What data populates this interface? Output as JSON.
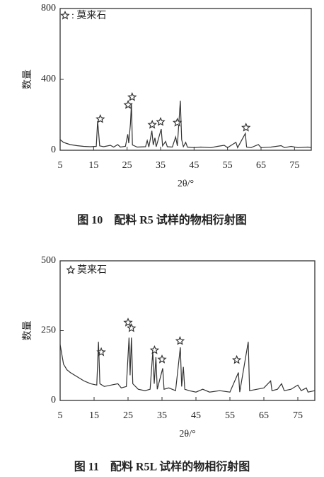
{
  "chart_data": [
    {
      "type": "line",
      "caption": "图 10　配料 R5 试样的物相衍射图",
      "x_label": "2θ/°",
      "y_label": "数量",
      "xlim": [
        5,
        80
      ],
      "xticks": [
        5,
        15,
        25,
        35,
        45,
        55,
        65,
        75
      ],
      "ylim": [
        0,
        800
      ],
      "yticks": [
        0,
        400,
        800
      ],
      "series": [
        {
          "color": "#333333",
          "x": [
            5,
            6,
            7,
            8,
            10,
            12,
            14,
            15.8,
            16.2,
            16.5,
            16.8,
            18,
            20,
            21,
            22.2,
            23,
            24.5,
            25.2,
            25.5,
            26.0,
            26.3,
            26.6,
            28,
            30.5,
            31.0,
            31.5,
            32.4,
            32.8,
            33.3,
            33.7,
            35.2,
            35.6,
            36.5,
            37,
            38.5,
            39.5,
            40.0,
            40.9,
            41.3,
            41.8,
            42.5,
            43,
            45,
            47,
            50,
            52,
            54,
            55,
            57.5,
            58,
            60.3,
            60.7,
            62,
            64.2,
            65,
            68,
            71,
            72,
            74,
            76,
            79,
            80
          ],
          "values": [
            60,
            45,
            38,
            32,
            26,
            22,
            20,
            22,
            165,
            100,
            25,
            20,
            28,
            18,
            32,
            18,
            22,
            90,
            40,
            150,
            265,
            30,
            18,
            20,
            55,
            18,
            110,
            30,
            70,
            20,
            120,
            25,
            50,
            20,
            18,
            75,
            25,
            280,
            60,
            20,
            45,
            18,
            15,
            18,
            15,
            22,
            28,
            15,
            45,
            15,
            95,
            18,
            15,
            32,
            15,
            18,
            26,
            15,
            22,
            15,
            18,
            15
          ]
        },
        {
          "name": ": 莫来石",
          "marker": "star",
          "color": "#333333",
          "x": [
            17,
            25.3,
            26.5,
            32.5,
            35,
            40,
            60.5
          ],
          "values": [
            176,
            256,
            300,
            144,
            160,
            156,
            128
          ]
        }
      ]
    },
    {
      "type": "line",
      "caption": "图 11　配料 R5L 试样的物相衍射图",
      "x_label": "2θ/°",
      "y_label": "数量",
      "xlim": [
        5,
        80
      ],
      "xticks": [
        5,
        15,
        25,
        35,
        45,
        55,
        65,
        75
      ],
      "ylim": [
        0,
        500
      ],
      "yticks": [
        0,
        250,
        500
      ],
      "series": [
        {
          "color": "#333333",
          "x": [
            5,
            6,
            7,
            8,
            10,
            12,
            14,
            15.8,
            16.3,
            16.7,
            18,
            20,
            22,
            23,
            24.5,
            25.3,
            25.6,
            26.0,
            26.4,
            28,
            30,
            31.5,
            32.3,
            32.7,
            33.2,
            33.6,
            35.2,
            35.6,
            37,
            39,
            40.4,
            40.8,
            41.3,
            41.7,
            43,
            45,
            47,
            49,
            52,
            55,
            57.5,
            57.9,
            60.4,
            60.8,
            63,
            65,
            67,
            67.4,
            69,
            70.2,
            71,
            73,
            75,
            76,
            77.5,
            78,
            80
          ],
          "values": [
            200,
            130,
            110,
            100,
            85,
            70,
            60,
            55,
            210,
            60,
            50,
            55,
            60,
            45,
            50,
            225,
            90,
            225,
            60,
            40,
            35,
            40,
            175,
            60,
            155,
            40,
            115,
            40,
            45,
            35,
            190,
            50,
            120,
            40,
            35,
            30,
            40,
            30,
            35,
            30,
            100,
            30,
            210,
            35,
            40,
            45,
            70,
            35,
            40,
            60,
            35,
            40,
            55,
            35,
            45,
            30,
            35
          ]
        },
        {
          "name": "莫来石",
          "marker": "star",
          "color": "#333333",
          "x": [
            17.1,
            25,
            26,
            32.8,
            35,
            40.3,
            57
          ],
          "values": [
            173,
            279,
            259,
            180,
            147,
            213,
            145
          ]
        }
      ]
    }
  ]
}
